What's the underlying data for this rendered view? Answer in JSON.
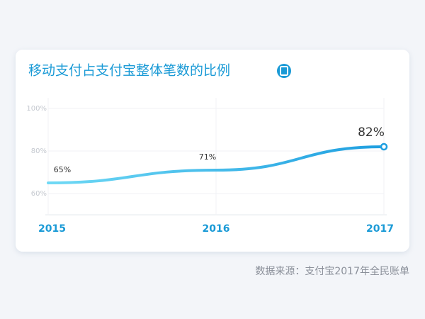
{
  "chart_data": {
    "type": "line",
    "title": "移动支付占支付宝整体笔数的比例",
    "categories": [
      "2015",
      "2016",
      "2017"
    ],
    "series": [
      {
        "color": "#1f9fe0",
        "values": [
          65,
          71,
          82
        ],
        "value_labels": [
          "65%",
          "71%",
          "82%"
        ]
      }
    ],
    "ylim": [
      50,
      105
    ],
    "yticks": [
      {
        "value": 60,
        "label": "60%"
      },
      {
        "value": 80,
        "label": "80%"
      },
      {
        "value": 100,
        "label": "100%"
      }
    ],
    "grid": true,
    "source": "数据来源：支付宝2017年全民账单"
  }
}
